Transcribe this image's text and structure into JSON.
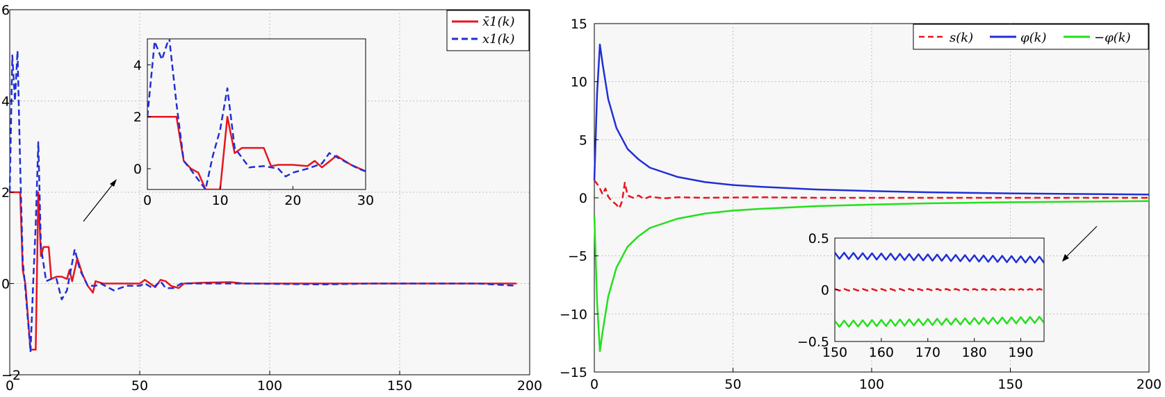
{
  "chart_data": [
    {
      "type": "line",
      "xlim": [
        0,
        200
      ],
      "ylim": [
        -2,
        6
      ],
      "xticks": [
        0,
        50,
        100,
        150,
        200
      ],
      "yticks": [
        -2,
        0,
        2,
        4,
        6
      ],
      "xtick_labels": [
        "0",
        "50",
        "100",
        "150",
        "200"
      ],
      "ytick_labels": [
        "−2",
        "0",
        "2",
        "4",
        "6"
      ],
      "grid": true,
      "legend_position": "top-right",
      "series": [
        {
          "name": "x̄1(k)",
          "color": "#e8141c",
          "style": "solid",
          "points": [
            [
              0,
              2
            ],
            [
              4,
              2
            ],
            [
              5,
              0.3
            ],
            [
              6,
              0
            ],
            [
              8,
              -1.45
            ],
            [
              10,
              -1.45
            ],
            [
              11,
              2
            ],
            [
              12,
              0.6
            ],
            [
              13,
              0.8
            ],
            [
              15,
              0.8
            ],
            [
              16,
              0.1
            ],
            [
              18,
              0.15
            ],
            [
              20,
              0.15
            ],
            [
              22,
              0.1
            ],
            [
              23,
              0.3
            ],
            [
              24,
              0.05
            ],
            [
              26,
              0.55
            ],
            [
              28,
              0.2
            ],
            [
              30,
              -0.05
            ],
            [
              32,
              -0.2
            ],
            [
              33,
              0.05
            ],
            [
              36,
              0
            ],
            [
              50,
              0
            ],
            [
              52,
              0.08
            ],
            [
              54,
              0
            ],
            [
              56,
              -0.08
            ],
            [
              58,
              0.08
            ],
            [
              60,
              0.05
            ],
            [
              62,
              -0.05
            ],
            [
              65,
              -0.1
            ],
            [
              67,
              0
            ],
            [
              75,
              0.02
            ],
            [
              85,
              0.03
            ],
            [
              90,
              0
            ],
            [
              100,
              0
            ],
            [
              120,
              0
            ],
            [
              140,
              0
            ],
            [
              160,
              0
            ],
            [
              180,
              0
            ],
            [
              195,
              0
            ]
          ]
        },
        {
          "name": "x1(k)",
          "color": "#1f2fd6",
          "style": "dashed",
          "points": [
            [
              0,
              2
            ],
            [
              1,
              5
            ],
            [
              2,
              4
            ],
            [
              3,
              5.1
            ],
            [
              4,
              2.6
            ],
            [
              5,
              0.5
            ],
            [
              6,
              -0.1
            ],
            [
              8,
              -1.5
            ],
            [
              9,
              0
            ],
            [
              10,
              1.3
            ],
            [
              11,
              3.1
            ],
            [
              12,
              0.8
            ],
            [
              14,
              0.05
            ],
            [
              16,
              0.1
            ],
            [
              18,
              0.1
            ],
            [
              20,
              -0.35
            ],
            [
              22,
              -0.15
            ],
            [
              25,
              0.75
            ],
            [
              27,
              0.3
            ],
            [
              30,
              -0.05
            ],
            [
              33,
              -0.05
            ],
            [
              35,
              0
            ],
            [
              40,
              -0.15
            ],
            [
              45,
              -0.05
            ],
            [
              50,
              -0.05
            ],
            [
              52,
              0
            ],
            [
              55,
              -0.1
            ],
            [
              58,
              0.05
            ],
            [
              60,
              -0.1
            ],
            [
              63,
              -0.1
            ],
            [
              66,
              0
            ],
            [
              75,
              0
            ],
            [
              90,
              0
            ],
            [
              120,
              -0.02
            ],
            [
              140,
              0
            ],
            [
              160,
              0
            ],
            [
              180,
              0
            ],
            [
              195,
              -0.05
            ]
          ]
        }
      ],
      "inset": {
        "xlim": [
          0,
          30
        ],
        "ylim": [
          -0.8,
          5
        ],
        "xticks": [
          0,
          10,
          20,
          30
        ],
        "yticks": [
          0,
          2,
          4
        ],
        "xtick_labels": [
          "0",
          "10",
          "20",
          "30"
        ],
        "ytick_labels": [
          "0",
          "2",
          "4"
        ],
        "series": [
          {
            "name": "x̄1(k)",
            "points": [
              [
                0,
                2
              ],
              [
                4,
                2
              ],
              [
                5,
                0.3
              ],
              [
                6,
                0
              ],
              [
                7,
                -0.15
              ],
              [
                8,
                -0.8
              ],
              [
                10,
                -0.8
              ],
              [
                11,
                2
              ],
              [
                12,
                0.6
              ],
              [
                13,
                0.8
              ],
              [
                16,
                0.8
              ],
              [
                17,
                0.1
              ],
              [
                18,
                0.15
              ],
              [
                20,
                0.15
              ],
              [
                22,
                0.1
              ],
              [
                23,
                0.3
              ],
              [
                24,
                0.05
              ],
              [
                26,
                0.5
              ],
              [
                28,
                0.15
              ],
              [
                30,
                -0.1
              ]
            ]
          },
          {
            "name": "x1(k)",
            "points": [
              [
                0,
                2
              ],
              [
                1,
                4.9
              ],
              [
                2,
                4.2
              ],
              [
                3,
                5.05
              ],
              [
                4,
                2.5
              ],
              [
                5,
                0.3
              ],
              [
                6,
                -0.05
              ],
              [
                8,
                -0.8
              ],
              [
                9,
                0.5
              ],
              [
                10,
                1.5
              ],
              [
                11,
                3.1
              ],
              [
                12,
                0.8
              ],
              [
                14,
                0.05
              ],
              [
                16,
                0.1
              ],
              [
                18,
                0
              ],
              [
                19,
                -0.3
              ],
              [
                20,
                -0.15
              ],
              [
                22,
                0
              ],
              [
                24,
                0.2
              ],
              [
                25,
                0.6
              ],
              [
                27,
                0.3
              ],
              [
                29,
                0
              ],
              [
                30,
                -0.1
              ]
            ]
          }
        ]
      }
    },
    {
      "type": "line",
      "xlim": [
        0,
        200
      ],
      "ylim": [
        -15,
        15
      ],
      "xticks": [
        0,
        50,
        100,
        150,
        200
      ],
      "yticks": [
        -15,
        -10,
        -5,
        0,
        5,
        10,
        15
      ],
      "xtick_labels": [
        "0",
        "50",
        "100",
        "150",
        "200"
      ],
      "ytick_labels": [
        "−15",
        "−10",
        "−5",
        "0",
        "5",
        "10",
        "15"
      ],
      "grid": true,
      "legend_position": "top-right",
      "series": [
        {
          "name": "s(k)",
          "color": "#e8141c",
          "style": "dashed",
          "points": [
            [
              0,
              1.5
            ],
            [
              1,
              1.2
            ],
            [
              2,
              0.8
            ],
            [
              3,
              0.3
            ],
            [
              4,
              0.8
            ],
            [
              5,
              0.1
            ],
            [
              6,
              -0.2
            ],
            [
              7,
              -0.4
            ],
            [
              8,
              -0.6
            ],
            [
              9,
              -0.9
            ],
            [
              10,
              -0.3
            ],
            [
              11,
              1.3
            ],
            [
              12,
              0.2
            ],
            [
              14,
              0
            ],
            [
              16,
              0.2
            ],
            [
              18,
              -0.1
            ],
            [
              20,
              0.1
            ],
            [
              25,
              -0.05
            ],
            [
              30,
              0.05
            ],
            [
              40,
              0
            ],
            [
              60,
              0.05
            ],
            [
              80,
              0
            ],
            [
              100,
              0
            ],
            [
              150,
              0
            ],
            [
              200,
              0
            ]
          ]
        },
        {
          "name": "φ(k)",
          "color": "#1f2fd6",
          "style": "solid",
          "points": [
            [
              0,
              1.5
            ],
            [
              1,
              9
            ],
            [
              2,
              13.2
            ],
            [
              3,
              11.5
            ],
            [
              5,
              8.5
            ],
            [
              8,
              6
            ],
            [
              12,
              4.2
            ],
            [
              16,
              3.3
            ],
            [
              20,
              2.6
            ],
            [
              30,
              1.8
            ],
            [
              40,
              1.35
            ],
            [
              50,
              1.1
            ],
            [
              60,
              0.95
            ],
            [
              80,
              0.72
            ],
            [
              100,
              0.58
            ],
            [
              120,
              0.48
            ],
            [
              150,
              0.38
            ],
            [
              180,
              0.32
            ],
            [
              200,
              0.28
            ]
          ]
        },
        {
          "name": "−φ(k)",
          "color": "#22e01a",
          "style": "solid",
          "points": [
            [
              0,
              -1.5
            ],
            [
              1,
              -9
            ],
            [
              2,
              -13.2
            ],
            [
              3,
              -11.5
            ],
            [
              5,
              -8.5
            ],
            [
              8,
              -6
            ],
            [
              12,
              -4.2
            ],
            [
              16,
              -3.3
            ],
            [
              20,
              -2.6
            ],
            [
              30,
              -1.8
            ],
            [
              40,
              -1.35
            ],
            [
              50,
              -1.1
            ],
            [
              60,
              -0.95
            ],
            [
              80,
              -0.72
            ],
            [
              100,
              -0.58
            ],
            [
              120,
              -0.48
            ],
            [
              150,
              -0.38
            ],
            [
              180,
              -0.32
            ],
            [
              200,
              -0.28
            ]
          ]
        }
      ],
      "inset": {
        "xlim": [
          150,
          195
        ],
        "ylim": [
          -0.5,
          0.5
        ],
        "xticks": [
          150,
          160,
          170,
          180,
          190
        ],
        "yticks": [
          -0.5,
          0,
          0.5
        ],
        "xtick_labels": [
          "150",
          "160",
          "170",
          "180",
          "190"
        ],
        "ytick_labels": [
          "−0.5",
          "0",
          "0.5"
        ],
        "series": [
          {
            "name": "s(k)",
            "center": 0,
            "amplitude": 0.008
          },
          {
            "name": "φ(k)",
            "center": 0.33,
            "amplitude": 0.03,
            "drift": -0.04
          },
          {
            "name": "−φ(k)",
            "center": -0.33,
            "amplitude": 0.03,
            "drift": 0.04
          }
        ]
      }
    }
  ]
}
